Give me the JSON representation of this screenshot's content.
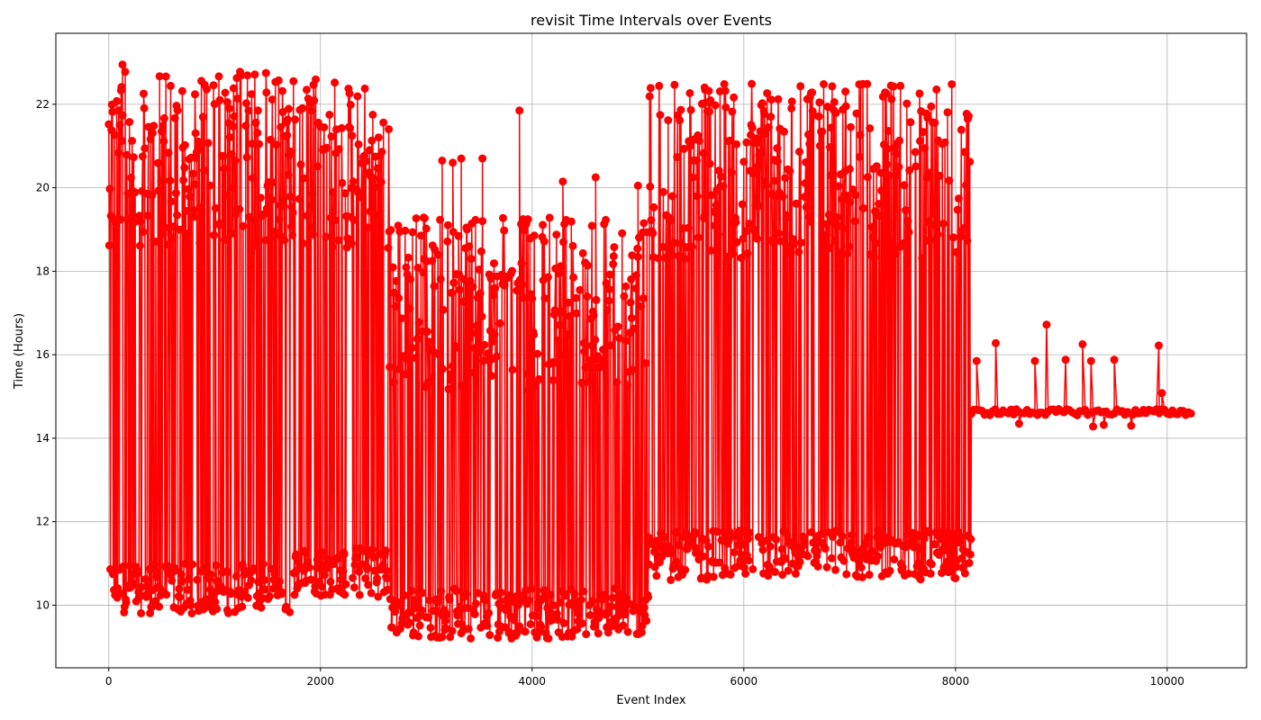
{
  "chart_data": {
    "type": "line",
    "title": "revisit Time Intervals over Events",
    "xlabel": "Event Index",
    "ylabel": "Time (Hours)",
    "xlim": [
      -500,
      10750
    ],
    "ylim": [
      8.5,
      23.7
    ],
    "xticks": [
      0,
      2000,
      4000,
      6000,
      8000,
      10000
    ],
    "yticks": [
      10,
      12,
      14,
      16,
      18,
      20,
      22
    ],
    "grid": true,
    "marker": "circle",
    "color": "#ff0000",
    "series": [
      {
        "segments": [
          {
            "x_range": [
              0,
              1720
            ],
            "y_low": 9.8,
            "y_high": 22.8,
            "step": 5
          },
          {
            "x_range": [
              1720,
              2650
            ],
            "y_low": 10.2,
            "y_high": 22.6,
            "step": 5
          },
          {
            "x_range": [
              2650,
              5100
            ],
            "y_low": 9.2,
            "y_high": 19.3,
            "step": 5
          },
          {
            "x_range": [
              5100,
              8150
            ],
            "y_low": 10.6,
            "y_high": 22.5,
            "step": 5
          },
          {
            "x_range": [
              8150,
              10250
            ],
            "y_low": 14.55,
            "y_high": 14.7,
            "step": 25
          }
        ],
        "outliers": [
          {
            "x": 130,
            "y": 22.95
          },
          {
            "x": 1050,
            "y": 22.1
          },
          {
            "x": 1120,
            "y": 22.05
          },
          {
            "x": 1200,
            "y": 19.45
          },
          {
            "x": 1620,
            "y": 18.85
          },
          {
            "x": 3150,
            "y": 20.65
          },
          {
            "x": 3250,
            "y": 20.6
          },
          {
            "x": 3330,
            "y": 20.7
          },
          {
            "x": 3530,
            "y": 20.7
          },
          {
            "x": 3880,
            "y": 21.85
          },
          {
            "x": 4290,
            "y": 20.15
          },
          {
            "x": 4600,
            "y": 20.25
          },
          {
            "x": 5000,
            "y": 20.05
          },
          {
            "x": 5630,
            "y": 22.4
          },
          {
            "x": 8200,
            "y": 15.85
          },
          {
            "x": 8380,
            "y": 16.28
          },
          {
            "x": 8600,
            "y": 14.35
          },
          {
            "x": 8750,
            "y": 15.85
          },
          {
            "x": 8860,
            "y": 16.72
          },
          {
            "x": 9040,
            "y": 15.88
          },
          {
            "x": 9200,
            "y": 16.25
          },
          {
            "x": 9280,
            "y": 15.85
          },
          {
            "x": 9300,
            "y": 14.28
          },
          {
            "x": 9400,
            "y": 14.32
          },
          {
            "x": 9500,
            "y": 15.88
          },
          {
            "x": 9660,
            "y": 14.3
          },
          {
            "x": 9920,
            "y": 16.22
          },
          {
            "x": 9950,
            "y": 15.08
          }
        ]
      }
    ]
  }
}
